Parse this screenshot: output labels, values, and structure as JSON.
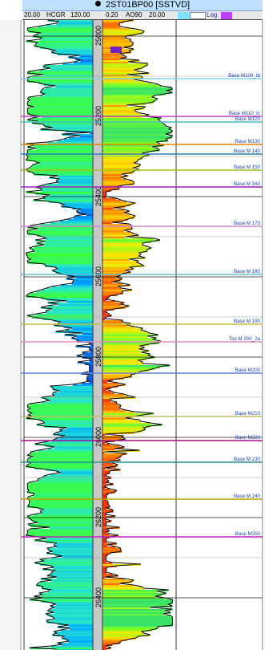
{
  "well": {
    "title": "2ST01BP00 [SSTVD]"
  },
  "tracks": {
    "hcgr": {
      "left_scale": "20.00",
      "curve": "HCGR",
      "right_scale": "120.00"
    },
    "ao90": {
      "left_scale": "0.20",
      "curve": "AO90",
      "right_scale": "20.00"
    },
    "log_label": "Log"
  },
  "depth_labels": [
    "25000",
    "25200",
    "25400",
    "25600",
    "25800",
    "26000",
    "26200",
    "26400"
  ],
  "markers": [
    {
      "label": "Base M100_tb",
      "color": "#7fd0e0"
    },
    {
      "label": "Base M110_tc",
      "color": "#c040c0"
    },
    {
      "label": "Base M120",
      "color": "#40c0c0"
    },
    {
      "label": "Base M130",
      "color": "#e08000"
    },
    {
      "label": "Base M 140",
      "color": "#2080c0"
    },
    {
      "label": "Base M 150",
      "color": "#a0c020"
    },
    {
      "label": "Base M 160",
      "color": "#a020c0"
    },
    {
      "label": "Base M 170",
      "color": "#d080d0"
    },
    {
      "label": "Base M 180",
      "color": "#60c0d0"
    },
    {
      "label": "Base M 190",
      "color": "#c0c040"
    },
    {
      "label": "Top M 200_2a",
      "color": "#e090c0"
    },
    {
      "label": "Base M200",
      "color": "#6080e0"
    },
    {
      "label": "Base M210",
      "color": "#c0c060"
    },
    {
      "label": "Base M220",
      "color": "#a01090"
    },
    {
      "label": "Base M 230",
      "color": "#209090"
    },
    {
      "label": "Base M 240",
      "color": "#c0a000"
    },
    {
      "label": "Base M250",
      "color": "#c020c0"
    }
  ],
  "colors": {
    "accent_blue": "#bfe0ff",
    "hcgr_low": "#1040e0",
    "hcgr_high": "#40ff40",
    "ao90_low": "#ff2000",
    "ao90_high": "#40ff40"
  }
}
